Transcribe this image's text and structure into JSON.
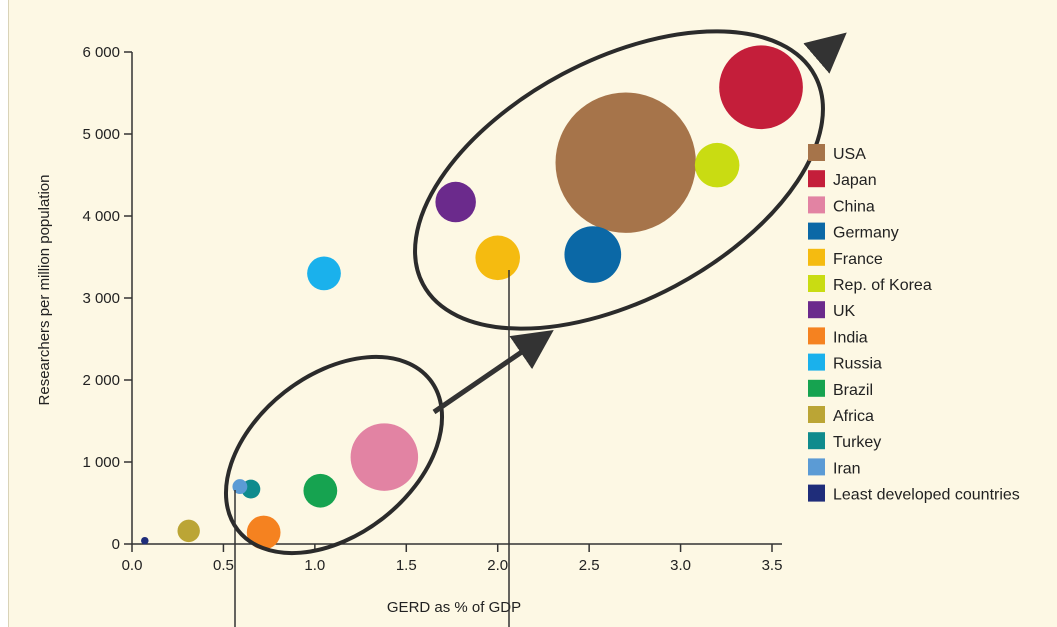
{
  "chart_data": {
    "type": "scatter",
    "subtype": "bubble",
    "xlabel": "GERD as % of GDP",
    "ylabel": "Researchers per million population",
    "xlim": [
      0,
      3.5
    ],
    "ylim": [
      0,
      6000
    ],
    "x_ticks": [
      "0.0",
      "0.5",
      "1.0",
      "1.5",
      "2.0",
      "2.5",
      "3.0",
      "3.5"
    ],
    "y_ticks": [
      "0",
      "1 000",
      "2 000",
      "3 000",
      "4 000",
      "5 000",
      "6 000"
    ],
    "legend_position": "right",
    "series": [
      {
        "name": "USA",
        "x": 2.7,
        "y": 4650,
        "size": 5.2,
        "color": "#a6744a"
      },
      {
        "name": "Japan",
        "x": 3.44,
        "y": 5570,
        "size": 3.1,
        "color": "#c41e3a"
      },
      {
        "name": "China",
        "x": 1.38,
        "y": 1060,
        "size": 2.5,
        "color": "#e283a3"
      },
      {
        "name": "Germany",
        "x": 2.52,
        "y": 3530,
        "size": 2.1,
        "color": "#0b68a6"
      },
      {
        "name": "France",
        "x": 2.0,
        "y": 3490,
        "size": 1.65,
        "color": "#f5bb10"
      },
      {
        "name": "Rep. of Korea",
        "x": 3.2,
        "y": 4620,
        "size": 1.65,
        "color": "#c9dc12"
      },
      {
        "name": "UK",
        "x": 1.77,
        "y": 4170,
        "size": 1.5,
        "color": "#6b2a8c"
      },
      {
        "name": "India",
        "x": 0.72,
        "y": 140,
        "size": 1.25,
        "color": "#f58220"
      },
      {
        "name": "Russia",
        "x": 1.05,
        "y": 3300,
        "size": 1.25,
        "color": "#1ab1ec"
      },
      {
        "name": "Brazil",
        "x": 1.03,
        "y": 650,
        "size": 1.25,
        "color": "#16a350"
      },
      {
        "name": "Africa",
        "x": 0.31,
        "y": 160,
        "size": 0.83,
        "color": "#bba535"
      },
      {
        "name": "Turkey",
        "x": 0.65,
        "y": 670,
        "size": 0.7,
        "color": "#0f8b8d"
      },
      {
        "name": "Iran",
        "x": 0.59,
        "y": 700,
        "size": 0.55,
        "color": "#5b9bd5"
      },
      {
        "name": "Least developed countries",
        "x": 0.07,
        "y": 40,
        "size": 0.28,
        "color": "#1f2d7a"
      }
    ]
  }
}
